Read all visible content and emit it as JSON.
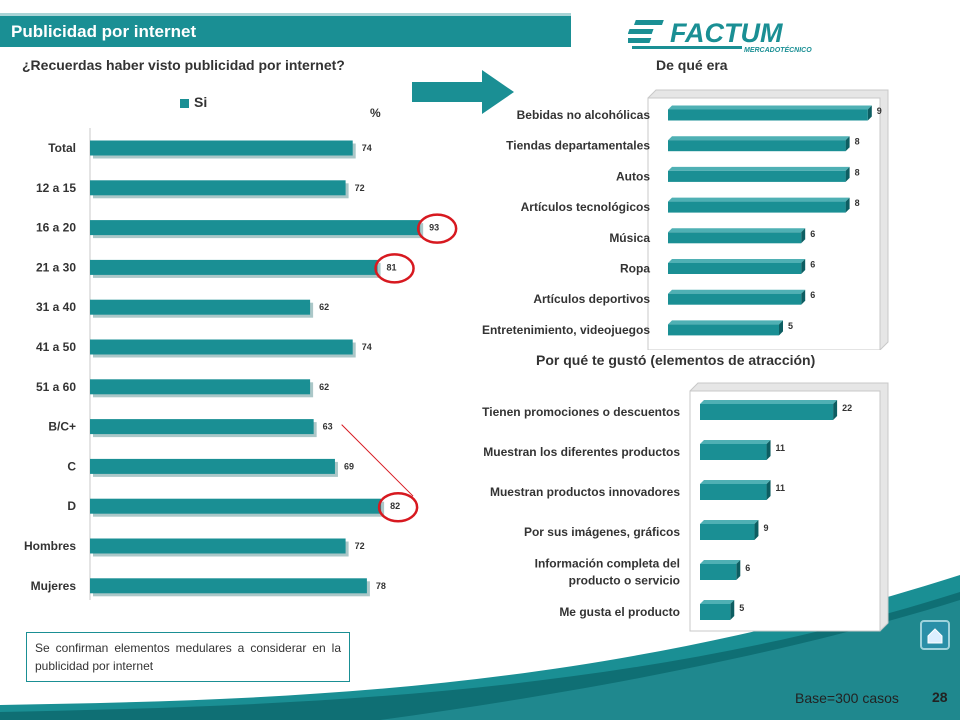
{
  "header": {
    "title": "Publicidad por internet",
    "logo_text": "FACTUM",
    "logo_subtext": "MERCADOTÉCNICO"
  },
  "questions": {
    "q1": "¿Recuerdas haber visto publicidad por internet?",
    "q2": "De qué era",
    "q3": "Por qué te gustó (elementos de atracción)"
  },
  "colors": {
    "bar": "#1a8f94",
    "bar_shadow": "#0d5e62",
    "accent_band": "#1a8f94",
    "highlight_circle": "#d71920"
  },
  "chart_data": [
    {
      "type": "bar",
      "orientation": "horizontal",
      "title": "¿Recuerdas haber visto publicidad por internet?",
      "unit": "%",
      "legend": [
        "Si"
      ],
      "categories": [
        "Total",
        "12 a 15",
        "16 a 20",
        "21 a 30",
        "31 a 40",
        "41 a 50",
        "51 a 60",
        "B/C+",
        "C",
        "D",
        "Hombres",
        "Mujeres"
      ],
      "series": [
        {
          "name": "Si",
          "values": [
            74,
            72,
            93,
            81,
            62,
            74,
            62,
            63,
            69,
            82,
            72,
            78
          ]
        }
      ],
      "highlighted": [
        "16 a 20",
        "21 a 30",
        "D"
      ]
    },
    {
      "type": "bar",
      "orientation": "horizontal",
      "title": "De qué era",
      "categories": [
        "Bebidas no alcohólicas",
        "Tiendas departamentales",
        "Autos",
        "Artículos tecnológicos",
        "Música",
        "Ropa",
        "Artículos deportivos",
        "Entretenimiento, videojuegos"
      ],
      "values": [
        9,
        8,
        8,
        8,
        6,
        6,
        6,
        5
      ]
    },
    {
      "type": "bar",
      "orientation": "horizontal",
      "title": "Por qué te gustó (elementos de atracción)",
      "categories": [
        "Tienen promociones o descuentos",
        "Muestran los diferentes productos",
        "Muestran productos innovadores",
        "Por sus imágenes, gráficos",
        "Información completa del producto o servicio",
        "Me gusta el producto"
      ],
      "values": [
        22,
        11,
        11,
        9,
        6,
        5
      ]
    }
  ],
  "note": "Se confirman elementos medulares a considerar en la publicidad por internet",
  "footer": {
    "base": "Base=300 casos",
    "page": "28"
  }
}
